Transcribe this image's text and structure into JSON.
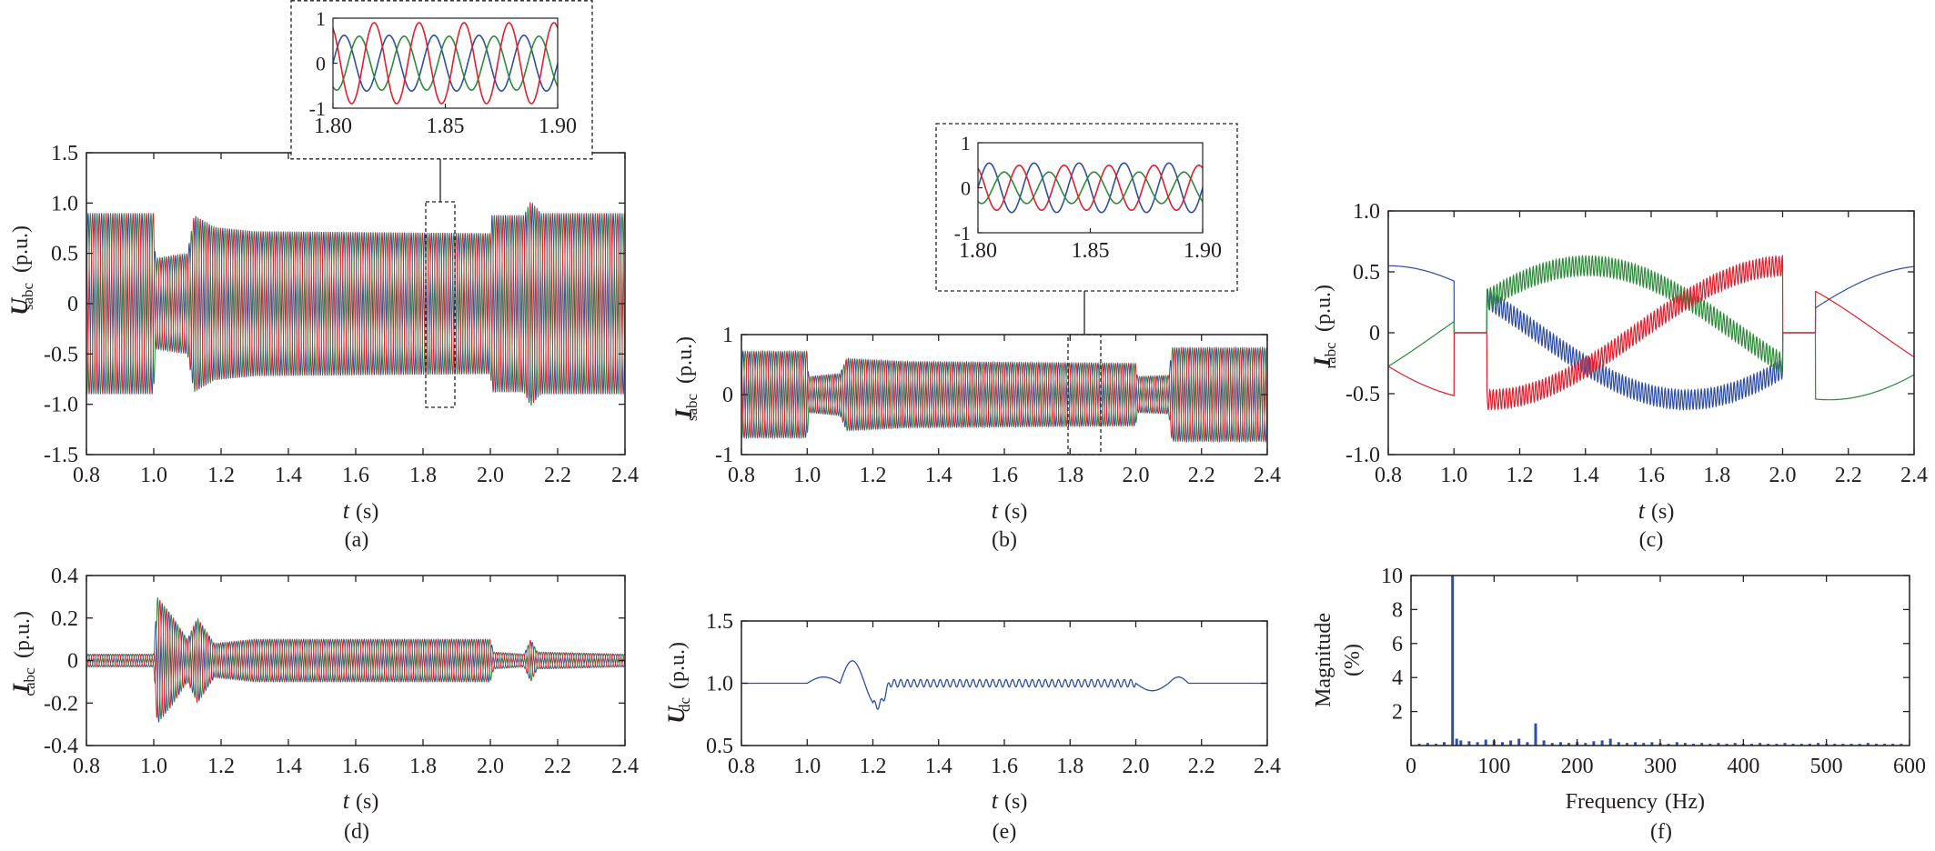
{
  "colors": {
    "a": "#2f4fa3",
    "b": "#2e8b3a",
    "c": "#e0202e",
    "axis": "#231f20"
  },
  "chart_data": [
    {
      "id": "a",
      "type": "line",
      "caption": "(a)",
      "ylabel_main": "U",
      "ylabel_sub": "sabc",
      "ylabel_unit": "(p.u.)",
      "xlabel_main": "t",
      "xlabel_unit": "(s)",
      "xlim": [
        0.8,
        2.4
      ],
      "ylim": [
        -1.5,
        1.5
      ],
      "xticks": [
        0.8,
        1.0,
        1.2,
        1.4,
        1.6,
        1.8,
        2.0,
        2.2,
        2.4
      ],
      "xtick_labels": [
        "0.8",
        "1.0",
        "1.2",
        "1.4",
        "1.6",
        "1.8",
        "2.0",
        "2.2",
        "2.4"
      ],
      "yticks": [
        -1.5,
        -1.0,
        -0.5,
        0,
        0.5,
        1.0,
        1.5
      ],
      "ytick_labels": [
        "-1.5",
        "-1.0",
        "-0.5",
        "0",
        "0.5",
        "1.0",
        "1.5"
      ],
      "series_colors": [
        "#2f4fa3",
        "#2e8b3a",
        "#e0202e"
      ],
      "envelope": [
        [
          0.8,
          0.9
        ],
        [
          1.0,
          0.9
        ],
        [
          1.005,
          0.45
        ],
        [
          1.1,
          0.5
        ],
        [
          1.12,
          0.88
        ],
        [
          1.18,
          0.76
        ],
        [
          1.3,
          0.72
        ],
        [
          2.0,
          0.7
        ],
        [
          2.005,
          0.88
        ],
        [
          2.1,
          0.88
        ],
        [
          2.12,
          1.02
        ],
        [
          2.15,
          0.9
        ],
        [
          2.4,
          0.9
        ]
      ],
      "period_s": 0.02,
      "inset": {
        "xlim": [
          1.8,
          1.9
        ],
        "ylim": [
          -1,
          1
        ],
        "xtick_labels": [
          "1.80",
          "1.85",
          "1.90"
        ],
        "ytick_labels": [
          "1",
          "0",
          "-1"
        ],
        "amplitudes": [
          0.62,
          0.6,
          0.9
        ],
        "phases_deg": [
          0,
          240,
          120
        ]
      },
      "zoom_region": [
        1.8,
        1.9
      ]
    },
    {
      "id": "b",
      "type": "line",
      "caption": "(b)",
      "ylabel_main": "I",
      "ylabel_sub": "sabc",
      "ylabel_unit": "(p.u.)",
      "xlabel_main": "t",
      "xlabel_unit": "(s)",
      "xlim": [
        0.8,
        2.4
      ],
      "ylim": [
        -1,
        1
      ],
      "xticks": [
        0.8,
        1.0,
        1.2,
        1.4,
        1.6,
        1.8,
        2.0,
        2.2,
        2.4
      ],
      "xtick_labels": [
        "0.8",
        "1.0",
        "1.2",
        "1.4",
        "1.6",
        "1.8",
        "2.0",
        "2.2",
        "2.4"
      ],
      "yticks": [
        -1,
        0,
        1
      ],
      "ytick_labels": [
        "-1",
        "0",
        "1"
      ],
      "series_colors": [
        "#2f4fa3",
        "#2e8b3a",
        "#e0202e"
      ],
      "envelope": [
        [
          0.8,
          0.72
        ],
        [
          1.0,
          0.72
        ],
        [
          1.005,
          0.3
        ],
        [
          1.1,
          0.35
        ],
        [
          1.12,
          0.6
        ],
        [
          1.3,
          0.55
        ],
        [
          2.0,
          0.52
        ],
        [
          2.005,
          0.3
        ],
        [
          2.1,
          0.32
        ],
        [
          2.11,
          0.78
        ],
        [
          2.4,
          0.78
        ]
      ],
      "period_s": 0.02,
      "inset": {
        "xlim": [
          1.8,
          1.9
        ],
        "ylim": [
          -1,
          1
        ],
        "xtick_labels": [
          "1.80",
          "1.85",
          "1.90"
        ],
        "ytick_labels": [
          "1",
          "0",
          "-1"
        ],
        "amplitudes": [
          0.55,
          0.35,
          0.5
        ],
        "phases_deg": [
          0,
          240,
          120
        ]
      },
      "zoom_region": [
        1.8,
        1.9
      ]
    },
    {
      "id": "c",
      "type": "line",
      "caption": "(c)",
      "ylabel_main": "I",
      "ylabel_sub": "rabc",
      "ylabel_unit": "(p.u.)",
      "xlabel_main": "t",
      "xlabel_unit": "(s)",
      "xlim": [
        0.8,
        2.4
      ],
      "ylim": [
        -1.0,
        1.0
      ],
      "xticks": [
        0.8,
        1.0,
        1.2,
        1.4,
        1.6,
        1.8,
        2.0,
        2.2,
        2.4
      ],
      "xtick_labels": [
        "0.8",
        "1.0",
        "1.2",
        "1.4",
        "1.6",
        "1.8",
        "2.0",
        "2.2",
        "2.4"
      ],
      "yticks": [
        -1.0,
        -0.5,
        0,
        0.5,
        1.0
      ],
      "ytick_labels": [
        "-1.0",
        "-0.5",
        "0",
        "0.5",
        "1.0"
      ],
      "series_colors": [
        "#2f4fa3",
        "#2e8b3a",
        "#e0202e"
      ],
      "amplitude": 0.55,
      "slip_freq_hz": 0.55,
      "ripple_pu": 0.08
    },
    {
      "id": "d",
      "type": "line",
      "caption": "(d)",
      "ylabel_main": "I",
      "ylabel_sub": "cabc",
      "ylabel_unit": "(p.u.)",
      "xlabel_main": "t",
      "xlabel_unit": "(s)",
      "xlim": [
        0.8,
        2.4
      ],
      "ylim": [
        -0.4,
        0.4
      ],
      "xticks": [
        0.8,
        1.0,
        1.2,
        1.4,
        1.6,
        1.8,
        2.0,
        2.2,
        2.4
      ],
      "xtick_labels": [
        "0.8",
        "1.0",
        "1.2",
        "1.4",
        "1.6",
        "1.8",
        "2.0",
        "2.2",
        "2.4"
      ],
      "yticks": [
        -0.4,
        -0.2,
        0,
        0.2,
        0.4
      ],
      "ytick_labels": [
        "-0.4",
        "-0.2",
        "0",
        "0.2",
        "0.4"
      ],
      "series_colors": [
        "#2f4fa3",
        "#2e8b3a",
        "#e0202e"
      ],
      "envelope": [
        [
          0.8,
          0.03
        ],
        [
          1.0,
          0.03
        ],
        [
          1.01,
          0.3
        ],
        [
          1.05,
          0.22
        ],
        [
          1.1,
          0.1
        ],
        [
          1.13,
          0.2
        ],
        [
          1.18,
          0.08
        ],
        [
          1.3,
          0.1
        ],
        [
          2.0,
          0.1
        ],
        [
          2.01,
          0.04
        ],
        [
          2.1,
          0.03
        ],
        [
          2.12,
          0.1
        ],
        [
          2.14,
          0.04
        ],
        [
          2.4,
          0.03
        ]
      ],
      "period_s": 0.02
    },
    {
      "id": "e",
      "type": "line",
      "caption": "(e)",
      "ylabel_main": "U",
      "ylabel_sub": "dc",
      "ylabel_unit": "(p.u.)",
      "xlabel_main": "t",
      "xlabel_unit": "(s)",
      "xlim": [
        0.8,
        2.4
      ],
      "ylim": [
        0.5,
        1.5
      ],
      "xticks": [
        0.8,
        1.0,
        1.2,
        1.4,
        1.6,
        1.8,
        2.0,
        2.2,
        2.4
      ],
      "xtick_labels": [
        "0.8",
        "1.0",
        "1.2",
        "1.4",
        "1.6",
        "1.8",
        "2.0",
        "2.2",
        "2.4"
      ],
      "yticks": [
        0.5,
        1.0,
        1.5
      ],
      "ytick_labels": [
        "0.5",
        "1.0",
        "1.5"
      ],
      "series_colors": [
        "#2f4fa3"
      ],
      "baseline": 1.0,
      "ripple_pu": 0.03
    },
    {
      "id": "f",
      "type": "bar",
      "caption": "(f)",
      "ylabel_main": "Magnitude",
      "ylabel_unit": "(%)",
      "xlabel_main": "Frequency",
      "xlabel_unit": "(Hz)",
      "xlim": [
        0,
        600
      ],
      "ylim": [
        0,
        10
      ],
      "xticks": [
        0,
        100,
        200,
        300,
        400,
        500,
        600
      ],
      "xtick_labels": [
        "0",
        "100",
        "200",
        "300",
        "400",
        "500",
        "600"
      ],
      "yticks": [
        2,
        4,
        6,
        8,
        10
      ],
      "ytick_labels": [
        "2",
        "4",
        "6",
        "8",
        "10"
      ],
      "series_colors": [
        "#2f4fa3"
      ],
      "x": [
        10,
        20,
        30,
        40,
        50,
        55,
        60,
        70,
        80,
        90,
        100,
        110,
        120,
        130,
        140,
        150,
        160,
        170,
        180,
        190,
        200,
        210,
        220,
        230,
        240,
        250,
        260,
        270,
        280,
        290,
        300,
        310,
        320,
        330,
        340,
        350,
        360,
        370,
        380,
        390,
        400,
        410,
        420,
        430,
        440,
        450,
        460,
        470,
        480,
        490,
        500,
        510,
        520,
        530,
        540,
        550,
        560,
        570,
        580,
        590
      ],
      "values": [
        0.1,
        0.15,
        0.1,
        0.2,
        10.0,
        0.4,
        0.3,
        0.25,
        0.2,
        0.35,
        0.3,
        0.2,
        0.3,
        0.4,
        0.2,
        1.3,
        0.3,
        0.15,
        0.2,
        0.15,
        0.2,
        0.15,
        0.25,
        0.3,
        0.4,
        0.2,
        0.15,
        0.2,
        0.15,
        0.2,
        0.15,
        0.1,
        0.2,
        0.15,
        0.1,
        0.15,
        0.1,
        0.15,
        0.1,
        0.15,
        0.1,
        0.1,
        0.15,
        0.1,
        0.1,
        0.15,
        0.1,
        0.1,
        0.1,
        0.15,
        0.1,
        0.1,
        0.1,
        0.1,
        0.1,
        0.15,
        0.1,
        0.1,
        0.1,
        0.1
      ]
    }
  ]
}
